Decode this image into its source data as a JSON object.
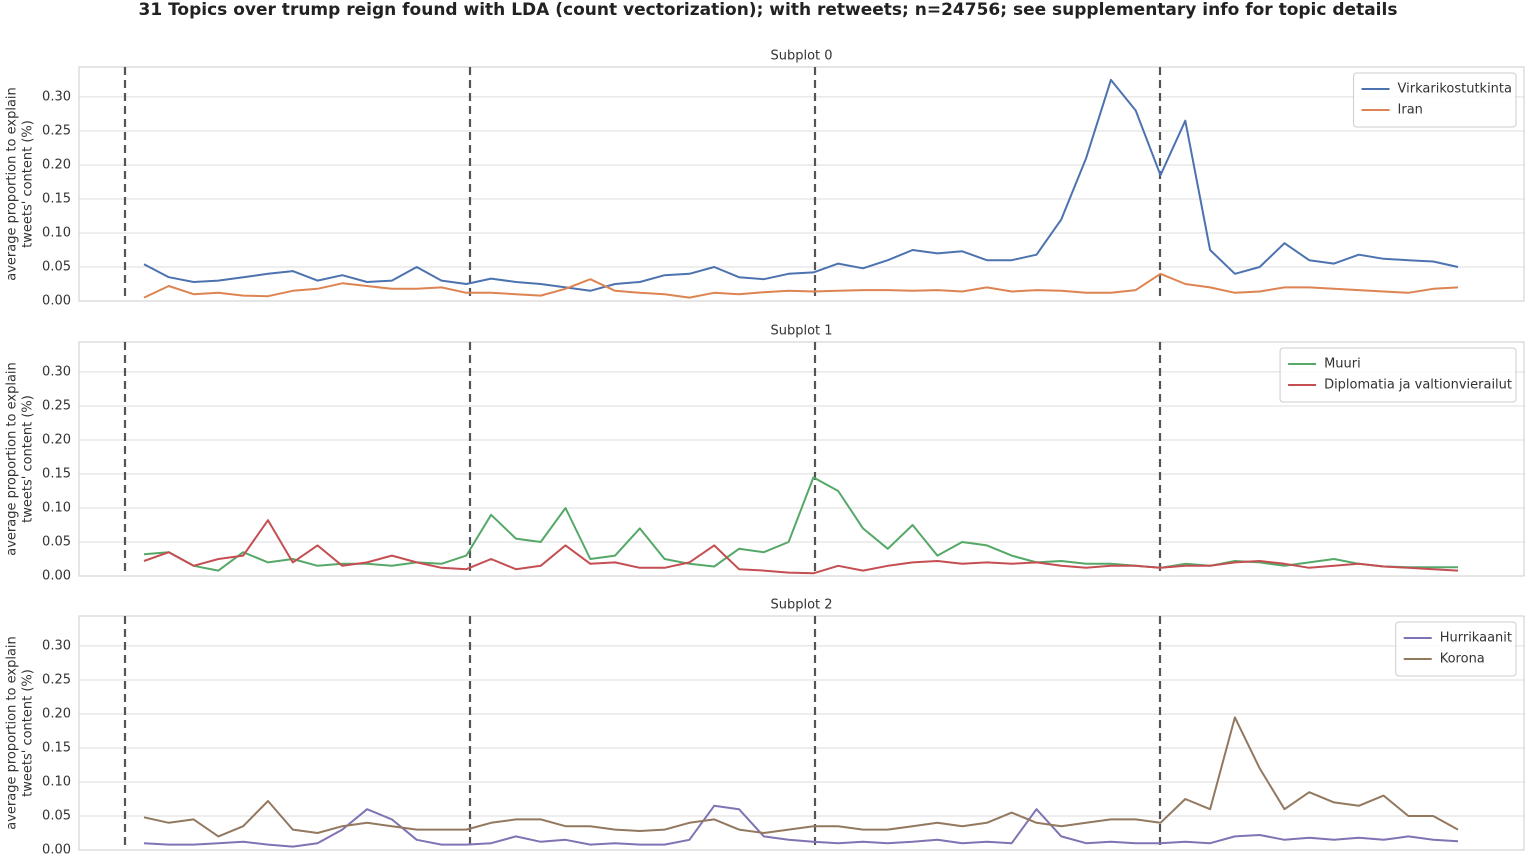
{
  "title": "31 Topics over trump reign found with LDA (count vectorization); with retweets; n=24756; see supplementary info for topic details",
  "chart_data": [
    {
      "type": "line",
      "title": "Subplot 0",
      "ylabel": [
        "average proportion to explain",
        "tweets' content (%)"
      ],
      "ylim": [
        0,
        0.344
      ],
      "yticks": [
        {
          "value": 0,
          "label": "0.00"
        },
        {
          "value": 0.05,
          "label": "0.05"
        },
        {
          "value": 0.1,
          "label": "0.10"
        },
        {
          "value": 0.15,
          "label": "0.15"
        },
        {
          "value": 0.2,
          "label": "0.20"
        },
        {
          "value": 0.25,
          "label": "0.25"
        },
        {
          "value": 0.3,
          "label": "0.30"
        }
      ],
      "grid": true,
      "legend": "upper right",
      "series": [
        {
          "name": "Virkarikostutkinta",
          "color": "#4c72b0",
          "values": [
            0.054,
            0.035,
            0.028,
            0.03,
            0.035,
            0.04,
            0.044,
            0.03,
            0.038,
            0.028,
            0.03,
            0.05,
            0.03,
            0.025,
            0.033,
            0.028,
            0.025,
            0.02,
            0.015,
            0.025,
            0.028,
            0.038,
            0.04,
            0.05,
            0.035,
            0.032,
            0.04,
            0.042,
            0.055,
            0.048,
            0.06,
            0.075,
            0.07,
            0.073,
            0.06,
            0.06,
            0.068,
            0.12,
            0.21,
            0.325,
            0.28,
            0.185,
            0.265,
            0.075,
            0.04,
            0.05,
            0.085,
            0.06,
            0.055,
            0.068,
            0.062,
            0.06,
            0.058,
            0.05
          ]
        },
        {
          "name": "Iran",
          "color": "#dd8452",
          "values": [
            0.005,
            0.022,
            0.01,
            0.012,
            0.008,
            0.007,
            0.015,
            0.018,
            0.026,
            0.022,
            0.018,
            0.018,
            0.02,
            0.012,
            0.012,
            0.01,
            0.008,
            0.018,
            0.032,
            0.015,
            0.012,
            0.01,
            0.005,
            0.012,
            0.01,
            0.013,
            0.015,
            0.014,
            0.015,
            0.016,
            0.016,
            0.015,
            0.016,
            0.014,
            0.02,
            0.014,
            0.016,
            0.015,
            0.012,
            0.012,
            0.016,
            0.04,
            0.025,
            0.02,
            0.012,
            0.014,
            0.02,
            0.02,
            0.018,
            0.016,
            0.014,
            0.012,
            0.018,
            0.02
          ]
        }
      ]
    },
    {
      "type": "line",
      "title": "Subplot 1",
      "ylabel": [
        "average proportion to explain",
        "tweets' content (%)"
      ],
      "ylim": [
        0,
        0.344
      ],
      "yticks": [
        {
          "value": 0,
          "label": "0.00"
        },
        {
          "value": 0.05,
          "label": "0.05"
        },
        {
          "value": 0.1,
          "label": "0.10"
        },
        {
          "value": 0.15,
          "label": "0.15"
        },
        {
          "value": 0.2,
          "label": "0.20"
        },
        {
          "value": 0.25,
          "label": "0.25"
        },
        {
          "value": 0.3,
          "label": "0.30"
        }
      ],
      "grid": true,
      "legend": "upper right",
      "series": [
        {
          "name": "Muuri",
          "color": "#55a868",
          "values": [
            0.032,
            0.035,
            0.015,
            0.008,
            0.035,
            0.02,
            0.025,
            0.015,
            0.018,
            0.018,
            0.015,
            0.02,
            0.018,
            0.03,
            0.09,
            0.055,
            0.05,
            0.1,
            0.025,
            0.03,
            0.07,
            0.025,
            0.018,
            0.014,
            0.04,
            0.035,
            0.05,
            0.145,
            0.125,
            0.07,
            0.04,
            0.075,
            0.03,
            0.05,
            0.045,
            0.03,
            0.02,
            0.022,
            0.018,
            0.018,
            0.015,
            0.012,
            0.018,
            0.015,
            0.022,
            0.02,
            0.015,
            0.02,
            0.025,
            0.018,
            0.014,
            0.013,
            0.013,
            0.013
          ]
        },
        {
          "name": "Diplomatia ja valtionvierailut",
          "color": "#c44e52",
          "values": [
            0.022,
            0.035,
            0.015,
            0.025,
            0.03,
            0.082,
            0.02,
            0.045,
            0.015,
            0.02,
            0.03,
            0.02,
            0.012,
            0.01,
            0.025,
            0.01,
            0.015,
            0.045,
            0.018,
            0.02,
            0.012,
            0.012,
            0.02,
            0.045,
            0.01,
            0.008,
            0.005,
            0.004,
            0.015,
            0.008,
            0.015,
            0.02,
            0.022,
            0.018,
            0.02,
            0.018,
            0.02,
            0.015,
            0.012,
            0.015,
            0.015,
            0.012,
            0.015,
            0.015,
            0.02,
            0.022,
            0.018,
            0.012,
            0.015,
            0.018,
            0.014,
            0.012,
            0.01,
            0.008
          ]
        }
      ]
    },
    {
      "type": "line",
      "title": "Subplot 2",
      "ylabel": [
        "average proportion to explain",
        "tweets' content (%)"
      ],
      "ylim": [
        0,
        0.344
      ],
      "yticks": [
        {
          "value": 0,
          "label": "0.00"
        },
        {
          "value": 0.05,
          "label": "0.05"
        },
        {
          "value": 0.1,
          "label": "0.10"
        },
        {
          "value": 0.15,
          "label": "0.15"
        },
        {
          "value": 0.2,
          "label": "0.20"
        },
        {
          "value": 0.25,
          "label": "0.25"
        },
        {
          "value": 0.3,
          "label": "0.30"
        }
      ],
      "grid": true,
      "legend": "upper right",
      "series": [
        {
          "name": "Hurrikaanit",
          "color": "#8172b3",
          "values": [
            0.01,
            0.008,
            0.008,
            0.01,
            0.012,
            0.008,
            0.005,
            0.01,
            0.03,
            0.06,
            0.045,
            0.015,
            0.008,
            0.008,
            0.01,
            0.02,
            0.012,
            0.015,
            0.008,
            0.01,
            0.008,
            0.008,
            0.015,
            0.065,
            0.06,
            0.02,
            0.015,
            0.012,
            0.01,
            0.012,
            0.01,
            0.012,
            0.015,
            0.01,
            0.012,
            0.01,
            0.06,
            0.02,
            0.01,
            0.012,
            0.01,
            0.01,
            0.012,
            0.01,
            0.02,
            0.022,
            0.015,
            0.018,
            0.015,
            0.018,
            0.015,
            0.02,
            0.015,
            0.013
          ]
        },
        {
          "name": "Korona",
          "color": "#937860",
          "values": [
            0.048,
            0.04,
            0.045,
            0.02,
            0.035,
            0.072,
            0.03,
            0.025,
            0.035,
            0.04,
            0.035,
            0.03,
            0.03,
            0.03,
            0.04,
            0.045,
            0.045,
            0.035,
            0.035,
            0.03,
            0.028,
            0.03,
            0.04,
            0.045,
            0.03,
            0.025,
            0.03,
            0.035,
            0.035,
            0.03,
            0.03,
            0.035,
            0.04,
            0.035,
            0.04,
            0.055,
            0.04,
            0.035,
            0.04,
            0.045,
            0.045,
            0.04,
            0.075,
            0.06,
            0.195,
            0.12,
            0.06,
            0.085,
            0.07,
            0.065,
            0.08,
            0.05,
            0.05,
            0.03
          ]
        }
      ]
    }
  ]
}
